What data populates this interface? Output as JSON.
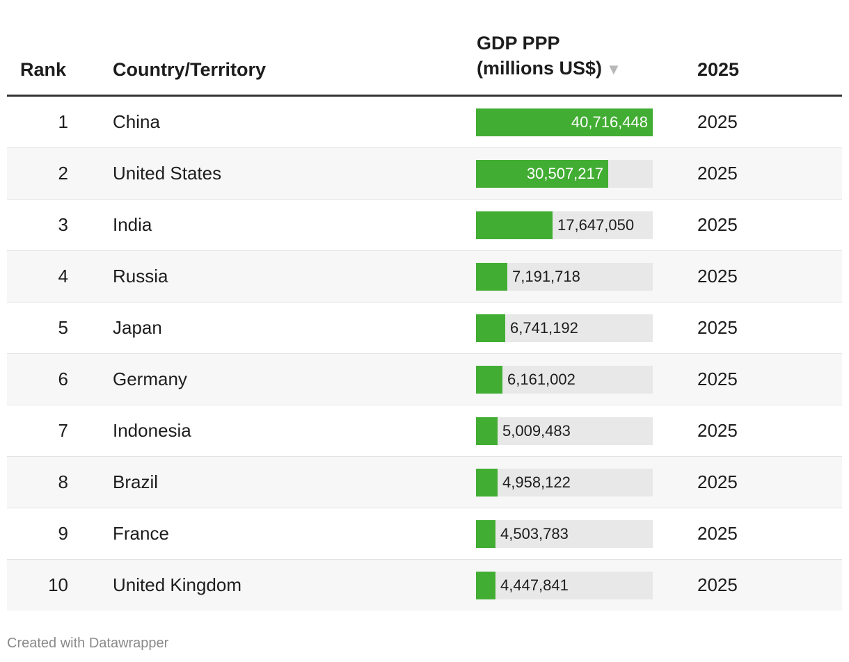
{
  "table": {
    "headers": {
      "rank": "Rank",
      "country": "Country/Territory",
      "gdp_line1": "GDP PPP",
      "gdp_line2": "(millions US$)",
      "sort_glyph": "▼",
      "year": "2025"
    }
  },
  "colors": {
    "bar": "#42ad33",
    "track": "#e8e8e8",
    "header_rule": "#333333"
  },
  "chart_data": {
    "type": "table",
    "columns": [
      "Rank",
      "Country/Territory",
      "GDP PPP (millions US$)",
      "2025"
    ],
    "sorted_by": "GDP PPP (millions US$)",
    "bar_max": 40716448,
    "rows": [
      {
        "rank": "1",
        "country": "China",
        "value": 40716448,
        "value_label": "40,716,448",
        "year": "2025"
      },
      {
        "rank": "2",
        "country": "United States",
        "value": 30507217,
        "value_label": "30,507,217",
        "year": "2025"
      },
      {
        "rank": "3",
        "country": "India",
        "value": 17647050,
        "value_label": "17,647,050",
        "year": "2025"
      },
      {
        "rank": "4",
        "country": "Russia",
        "value": 7191718,
        "value_label": "7,191,718",
        "year": "2025"
      },
      {
        "rank": "5",
        "country": "Japan",
        "value": 6741192,
        "value_label": "6,741,192",
        "year": "2025"
      },
      {
        "rank": "6",
        "country": "Germany",
        "value": 6161002,
        "value_label": "6,161,002",
        "year": "2025"
      },
      {
        "rank": "7",
        "country": "Indonesia",
        "value": 5009483,
        "value_label": "5,009,483",
        "year": "2025"
      },
      {
        "rank": "8",
        "country": "Brazil",
        "value": 4958122,
        "value_label": "4,958,122",
        "year": "2025"
      },
      {
        "rank": "9",
        "country": "France",
        "value": 4503783,
        "value_label": "4,503,783",
        "year": "2025"
      },
      {
        "rank": "10",
        "country": "United Kingdom",
        "value": 4447841,
        "value_label": "4,447,841",
        "year": "2025"
      }
    ]
  },
  "footer": {
    "credit": "Created with Datawrapper"
  }
}
